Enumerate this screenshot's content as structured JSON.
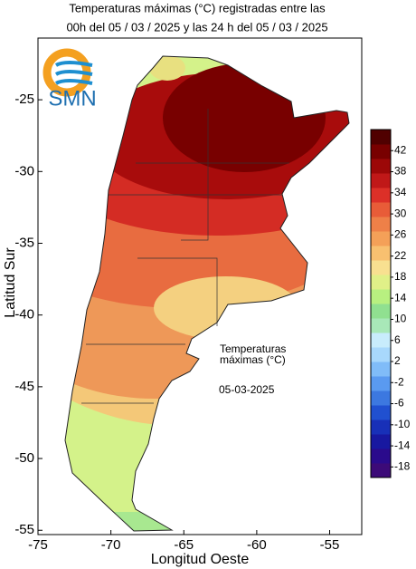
{
  "header": {
    "title_lines": [
      "Temperaturas máximas (°C) registradas entre las",
      "00h del 05 / 03 / 2025 y las 24 h del 05 / 03 / 2025"
    ]
  },
  "logo": {
    "text": "SMN"
  },
  "map": {
    "xlabel": "Longitud Oeste",
    "ylabel": "Latitud Sur",
    "xlim": [
      -75,
      -52.8
    ],
    "ylim": [
      -55.3,
      -20.7
    ],
    "xticks": [
      -75,
      -70,
      -65,
      -60,
      -55
    ],
    "yticks": [
      -25,
      -30,
      -35,
      -40,
      -45,
      -50,
      -55
    ],
    "annotation_lines": [
      "Temperaturas",
      "máximas (°C)"
    ],
    "date": "05-03-2025"
  },
  "colorbar": {
    "range": [
      -20,
      46
    ],
    "ticks": [
      42,
      38,
      34,
      30,
      26,
      22,
      18,
      14,
      10,
      6,
      2,
      -2,
      -6,
      -10,
      -14,
      -18
    ],
    "colors": [
      "#3c0a78",
      "#2a0a8c",
      "#1818a0",
      "#1830b8",
      "#2050d0",
      "#3c78e0",
      "#5a9af0",
      "#80bcf8",
      "#a8d8fc",
      "#c8ecfc",
      "#a8e8b8",
      "#90e090",
      "#b8f080",
      "#e0f088",
      "#f8e090",
      "#f8c070",
      "#f4a058",
      "#ee8048",
      "#e85c38",
      "#dc3028",
      "#c01818",
      "#9c0808",
      "#780000",
      "#500000"
    ]
  }
}
